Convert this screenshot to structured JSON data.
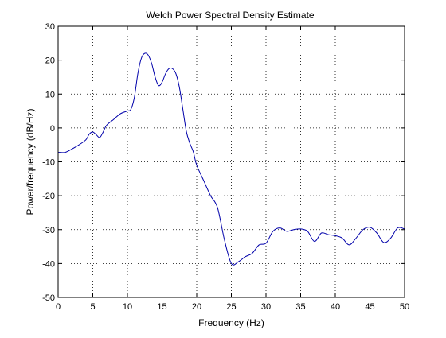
{
  "chart_data": {
    "type": "line",
    "title": "Welch Power Spectral Density Estimate",
    "xlabel": "Frequency (Hz)",
    "ylabel": "Power/frequency (dB/Hz)",
    "xlim": [
      0,
      50
    ],
    "ylim": [
      -50,
      30
    ],
    "xticks": [
      0,
      5,
      10,
      15,
      20,
      25,
      30,
      35,
      40,
      45,
      50
    ],
    "yticks": [
      30,
      20,
      10,
      0,
      -10,
      -20,
      -30,
      -40,
      -50
    ],
    "grid": true,
    "line_color": "#0000aa",
    "series": [
      {
        "x": [
          0,
          1,
          2,
          3,
          4,
          4.5,
          5,
          5.5,
          6,
          6.5,
          7,
          8,
          9,
          10,
          10.5,
          11,
          11.5,
          12,
          12.5,
          13,
          13.5,
          14,
          14.5,
          15,
          15.5,
          16,
          16.5,
          17,
          17.5,
          18,
          18.5,
          19,
          19.5,
          20,
          21,
          22,
          23,
          24,
          25,
          26,
          27,
          28,
          29,
          30,
          31,
          32,
          33,
          34,
          35,
          36,
          37,
          38,
          39,
          40,
          41,
          42,
          43,
          44,
          45,
          46,
          47,
          48,
          49,
          50
        ],
        "y": [
          -7.2,
          -7.2,
          -6.2,
          -5.0,
          -3.5,
          -1.8,
          -1.2,
          -2.0,
          -2.8,
          -1.2,
          0.8,
          2.5,
          4.2,
          5.0,
          5.5,
          9.0,
          16.0,
          20.5,
          22.0,
          21.5,
          19.0,
          15.0,
          12.5,
          13.5,
          16.0,
          17.5,
          17.5,
          16.0,
          12.0,
          5.5,
          -1.0,
          -4.5,
          -7.0,
          -11.0,
          -15.5,
          -20.0,
          -23.5,
          -33.0,
          -40.0,
          -39.5,
          -38.0,
          -37.0,
          -34.5,
          -34.0,
          -30.5,
          -29.5,
          -30.5,
          -30.0,
          -29.8,
          -30.5,
          -33.5,
          -31.0,
          -31.5,
          -31.8,
          -32.5,
          -34.5,
          -32.5,
          -30.0,
          -29.3,
          -31.0,
          -33.8,
          -32.5,
          -29.5,
          -29.8
        ]
      }
    ]
  }
}
